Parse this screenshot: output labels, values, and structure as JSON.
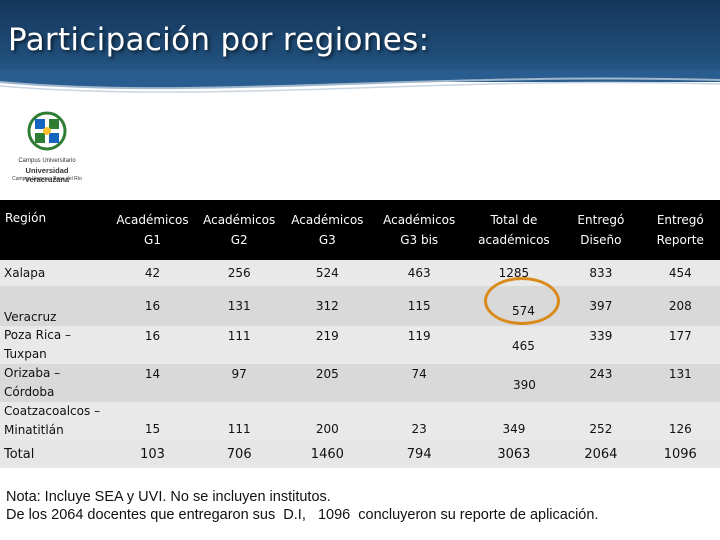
{
  "slide": {
    "title": "Participación por regiones:"
  },
  "logo": {
    "line1": "Campus Universitario",
    "line2": "Universidad Veracruzana",
    "line3": "Campus Veracruz Boca del Río"
  },
  "table": {
    "headers": [
      "Región",
      "Académicos G1",
      "Académicos G2",
      "Académicos G3",
      "Académicos G3 bis",
      "Total de académicos",
      "Entregó Diseño",
      "Entregó Reporte"
    ],
    "rows": [
      {
        "region": "Xalapa",
        "g1": "42",
        "g2": "256",
        "g3": "524",
        "g3bis": "463",
        "total": "1285",
        "diseno": "833",
        "reporte": "454"
      },
      {
        "region": "Veracruz",
        "g1": "16",
        "g2": "131",
        "g3": "312",
        "g3bis": "115",
        "total": "",
        "diseno": "397",
        "reporte": "208"
      },
      {
        "region": "Poza Rica – Tuxpan",
        "g1": "16",
        "g2": "111",
        "g3": "219",
        "g3bis": "119",
        "total": "",
        "diseno": "339",
        "reporte": "177"
      },
      {
        "region": "Orizaba – Córdoba",
        "g1": "14",
        "g2": "97",
        "g3": "205",
        "g3bis": "74",
        "total": "",
        "diseno": "243",
        "reporte": "131"
      },
      {
        "region": "Coatzacoalcos – Minatitlán",
        "g1": "15",
        "g2": "111",
        "g3": "200",
        "g3bis": "23",
        "total": "349",
        "diseno": "252",
        "reporte": "126"
      }
    ],
    "floating_totals": {
      "veracruz": "574",
      "poza_rica": "465",
      "orizaba": "390"
    },
    "total_row": {
      "label": "Total",
      "g1": "103",
      "g2": "706",
      "g3": "1460",
      "g3bis": "794",
      "total": "3063",
      "diseno": "2064",
      "reporte": "1096"
    }
  },
  "note": {
    "line1": "Nota: Incluye SEA y UVI. No se incluyen institutos.",
    "line2": "De los 2064 docentes que entregaron sus  D.I,   1096  concluyeron su reporte de aplicación."
  },
  "colors": {
    "header_bg": "#1f4e79",
    "table_header": "#000000",
    "highlight": "#d98a1b"
  }
}
